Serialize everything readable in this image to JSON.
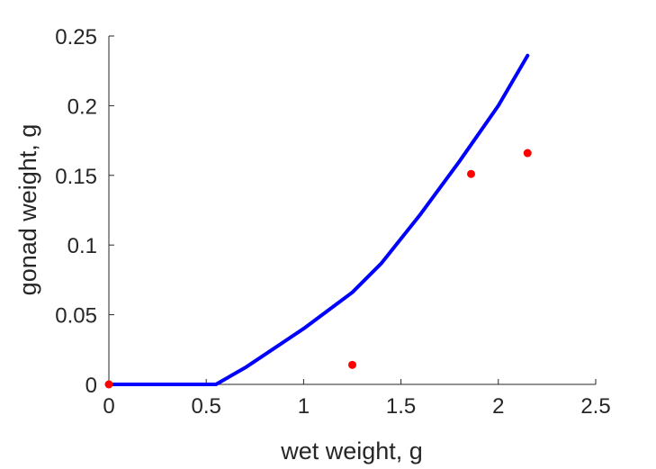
{
  "chart_data": {
    "type": "line",
    "title": "",
    "xlabel": "wet weight, g",
    "ylabel": "gonad weight, g",
    "xlim": [
      0,
      2.5
    ],
    "ylim": [
      0,
      0.25
    ],
    "x_ticks": [
      "0",
      "0.5",
      "1",
      "1.5",
      "2",
      "2.5"
    ],
    "y_ticks": [
      "0",
      "0.05",
      "0.1",
      "0.15",
      "0.2",
      "0.25"
    ],
    "grid": false,
    "legend": "none",
    "series": [
      {
        "type": "line",
        "color": "#0000ff",
        "x": [
          0,
          0.55,
          0.7,
          0.85,
          1.0,
          1.25,
          1.4,
          1.6,
          1.8,
          2.0,
          2.15
        ],
        "y": [
          0,
          0,
          0.012,
          0.026,
          0.04,
          0.066,
          0.087,
          0.122,
          0.16,
          0.2,
          0.236
        ]
      },
      {
        "type": "scatter",
        "color": "#ff0000",
        "x": [
          0,
          1.25,
          1.86,
          2.15
        ],
        "y": [
          0,
          0.014,
          0.151,
          0.166
        ]
      }
    ]
  }
}
